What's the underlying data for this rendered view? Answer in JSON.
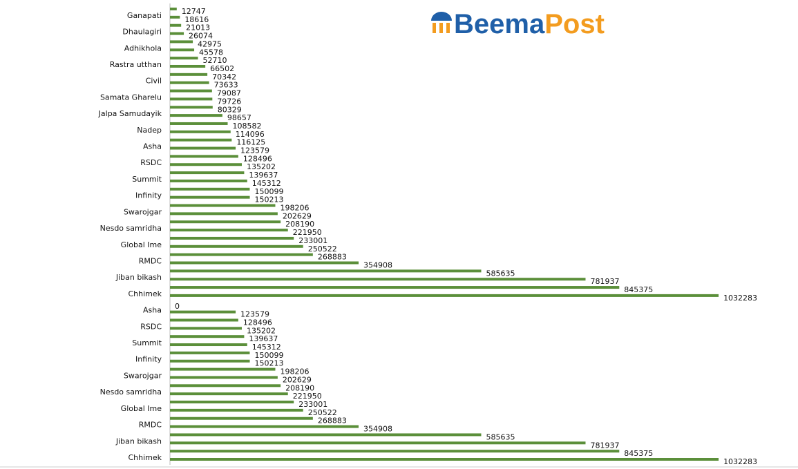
{
  "chart_data": {
    "type": "barh",
    "annotations": [
      "Beema",
      "Post"
    ],
    "categories": [
      null,
      "Ganapati",
      null,
      "Dhaulagiri",
      null,
      "Adhikhola",
      null,
      "Rastra utthan",
      null,
      "Civil",
      null,
      "Samata Gharelu",
      null,
      "Jalpa Samudayik",
      null,
      "Nadep",
      null,
      "Asha",
      null,
      "RSDC",
      null,
      "Summit",
      null,
      "Infinity",
      null,
      "Swarojgar",
      null,
      "Nesdo samridha",
      null,
      "Global Ime",
      null,
      "RMDC",
      null,
      "Jiban bikash",
      null,
      "Chhimek",
      null,
      "Asha",
      null,
      "RSDC",
      null,
      "Summit",
      null,
      "Infinity",
      null,
      "Swarojgar",
      null,
      "Nesdo samridha",
      null,
      "Global Ime",
      null,
      "RMDC",
      null,
      "Jiban bikash",
      null,
      "Chhimek"
    ],
    "values": [
      12747,
      18616,
      21013,
      26074,
      42975,
      45578,
      52710,
      66502,
      70342,
      73633,
      79087,
      79726,
      80329,
      98657,
      108582,
      114096,
      116125,
      123579,
      128496,
      135202,
      139637,
      145312,
      150099,
      150213,
      198206,
      202629,
      208190,
      221950,
      233001,
      250522,
      268883,
      354908,
      585635,
      781937,
      845375,
      1032283,
      0,
      123579,
      128496,
      135202,
      139637,
      145312,
      150099,
      150213,
      198206,
      202629,
      208190,
      221950,
      233001,
      250522,
      268883,
      354908,
      585635,
      781937,
      845375,
      1032283
    ],
    "color": "#5b8f3a",
    "xlim": [
      0,
      1040000
    ]
  }
}
